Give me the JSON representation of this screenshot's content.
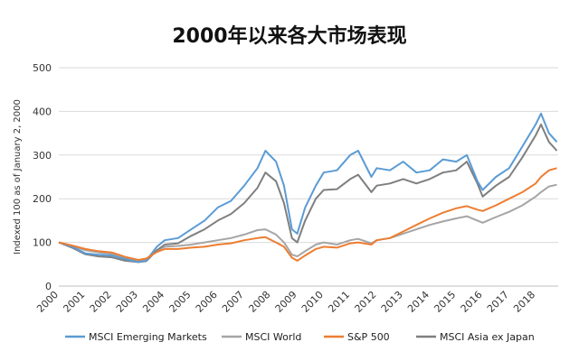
{
  "chart_data": {
    "type": "line",
    "title": "2000年以来各大市场表现",
    "xlabel": "",
    "ylabel": "Indexed 100 as of January 2, 2000",
    "xlim": [
      2000,
      2018.85
    ],
    "ylim": [
      0,
      500
    ],
    "yticks": [
      0,
      100,
      200,
      300,
      400,
      500
    ],
    "xticks": [
      "2000",
      "2001",
      "2002",
      "2003",
      "2004",
      "2005",
      "2006",
      "2007",
      "2008",
      "2009",
      "2010",
      "2011",
      "2012",
      "2013",
      "2014",
      "2015",
      "2016",
      "2017",
      "2018"
    ],
    "grid": "horizontal",
    "legend_position": "bottom",
    "x": [
      2000.0,
      2000.5,
      2001.0,
      2001.5,
      2002.0,
      2002.5,
      2003.0,
      2003.3,
      2003.7,
      2004.0,
      2004.5,
      2005.0,
      2005.5,
      2006.0,
      2006.5,
      2007.0,
      2007.5,
      2007.8,
      2008.2,
      2008.5,
      2008.8,
      2009.0,
      2009.3,
      2009.7,
      2010.0,
      2010.5,
      2011.0,
      2011.3,
      2011.8,
      2012.0,
      2012.5,
      2013.0,
      2013.5,
      2014.0,
      2014.5,
      2015.0,
      2015.4,
      2015.8,
      2016.0,
      2016.5,
      2017.0,
      2017.5,
      2018.0,
      2018.2,
      2018.5,
      2018.8
    ],
    "series": [
      {
        "name": "MSCI Emerging Markets",
        "color": "#5b9bd5",
        "values": [
          100,
          90,
          75,
          72,
          70,
          62,
          55,
          58,
          90,
          105,
          110,
          130,
          150,
          180,
          195,
          230,
          270,
          310,
          285,
          230,
          130,
          120,
          180,
          230,
          260,
          265,
          300,
          310,
          250,
          270,
          265,
          285,
          260,
          265,
          290,
          285,
          300,
          240,
          220,
          250,
          270,
          320,
          370,
          395,
          350,
          330
        ]
      },
      {
        "name": "MSCI World",
        "color": "#a5a5a5",
        "values": [
          100,
          92,
          82,
          77,
          74,
          65,
          58,
          62,
          82,
          90,
          92,
          95,
          100,
          105,
          110,
          118,
          128,
          130,
          118,
          100,
          72,
          68,
          80,
          95,
          100,
          95,
          105,
          108,
          98,
          105,
          110,
          120,
          130,
          140,
          148,
          155,
          160,
          150,
          145,
          158,
          170,
          185,
          205,
          215,
          228,
          232
        ]
      },
      {
        "name": "S&P 500",
        "color": "#ed7d31",
        "values": [
          100,
          93,
          85,
          80,
          77,
          67,
          60,
          63,
          78,
          85,
          85,
          88,
          90,
          95,
          98,
          105,
          110,
          112,
          100,
          90,
          65,
          58,
          70,
          85,
          90,
          88,
          98,
          100,
          95,
          105,
          110,
          125,
          140,
          155,
          168,
          178,
          183,
          175,
          172,
          185,
          200,
          215,
          235,
          250,
          265,
          270
        ]
      },
      {
        "name": "MSCI Asia ex Japan",
        "color": "#7f7f7f",
        "values": [
          100,
          88,
          73,
          68,
          66,
          58,
          55,
          57,
          82,
          95,
          98,
          115,
          130,
          150,
          165,
          190,
          225,
          260,
          240,
          190,
          110,
          100,
          150,
          200,
          220,
          222,
          245,
          255,
          215,
          230,
          235,
          245,
          235,
          245,
          260,
          265,
          285,
          235,
          205,
          230,
          250,
          295,
          345,
          370,
          330,
          310
        ]
      }
    ]
  }
}
